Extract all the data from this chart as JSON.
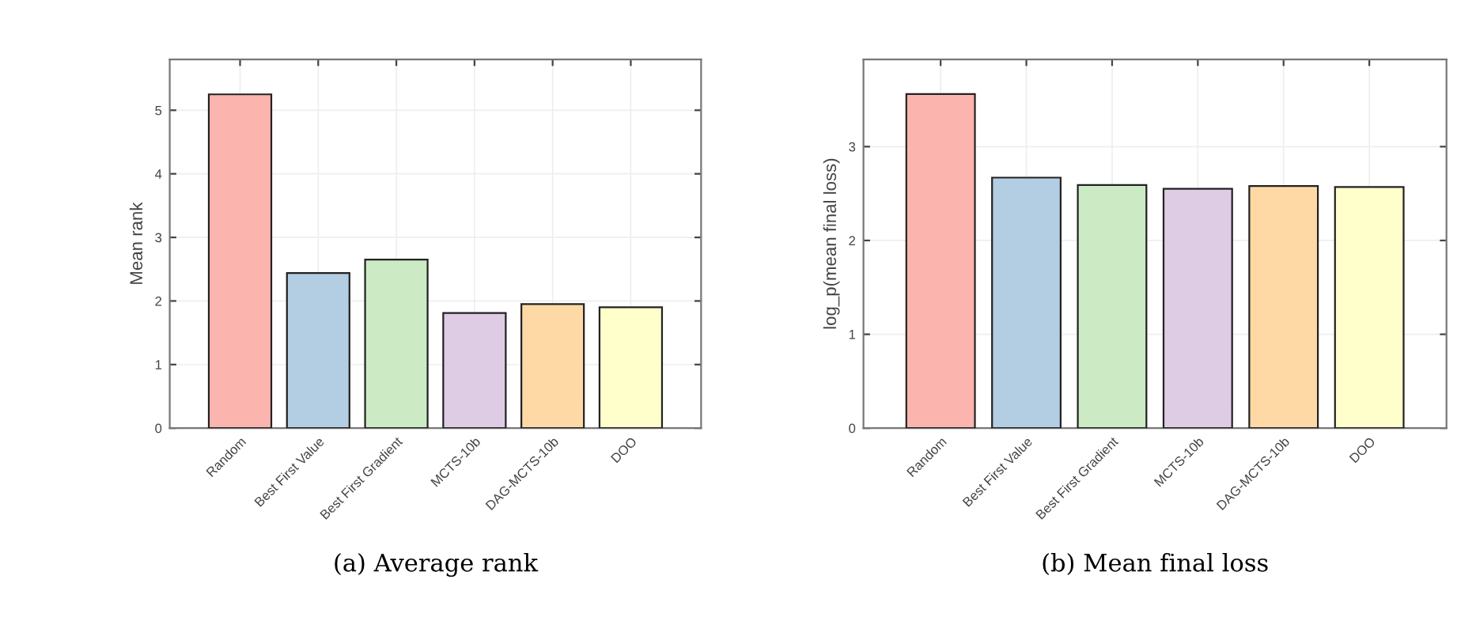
{
  "chart_data": [
    {
      "type": "bar",
      "xlabel": "(a) Average rank",
      "ylabel": "Mean rank",
      "categories": [
        "Random",
        "Best First Value",
        "Best First Gradient",
        "MCTS-10b",
        "DAG-MCTS-10b",
        "DOO"
      ],
      "values": [
        5.25,
        2.44,
        2.65,
        1.81,
        1.95,
        1.9
      ],
      "colors": [
        "#fbb4ae",
        "#b3cde3",
        "#ccebc5",
        "#decbe4",
        "#fed9a6",
        "#ffffcc"
      ],
      "ylim": [
        0,
        5.8
      ],
      "yticks": [
        0,
        1,
        2,
        3,
        4,
        5
      ],
      "grid": true
    },
    {
      "type": "bar",
      "xlabel": "(b) Mean final loss",
      "ylabel": "log_p(mean final loss)",
      "categories": [
        "Random",
        "Best First Value",
        "Best First Gradient",
        "MCTS-10b",
        "DAG-MCTS-10b",
        "DOO"
      ],
      "values": [
        3.56,
        2.67,
        2.59,
        2.55,
        2.58,
        2.57
      ],
      "colors": [
        "#fbb4ae",
        "#b3cde3",
        "#ccebc5",
        "#decbe4",
        "#fed9a6",
        "#ffffcc"
      ],
      "ylim": [
        0,
        3.93
      ],
      "yticks": [
        0,
        1,
        2,
        3
      ],
      "grid": true
    }
  ]
}
